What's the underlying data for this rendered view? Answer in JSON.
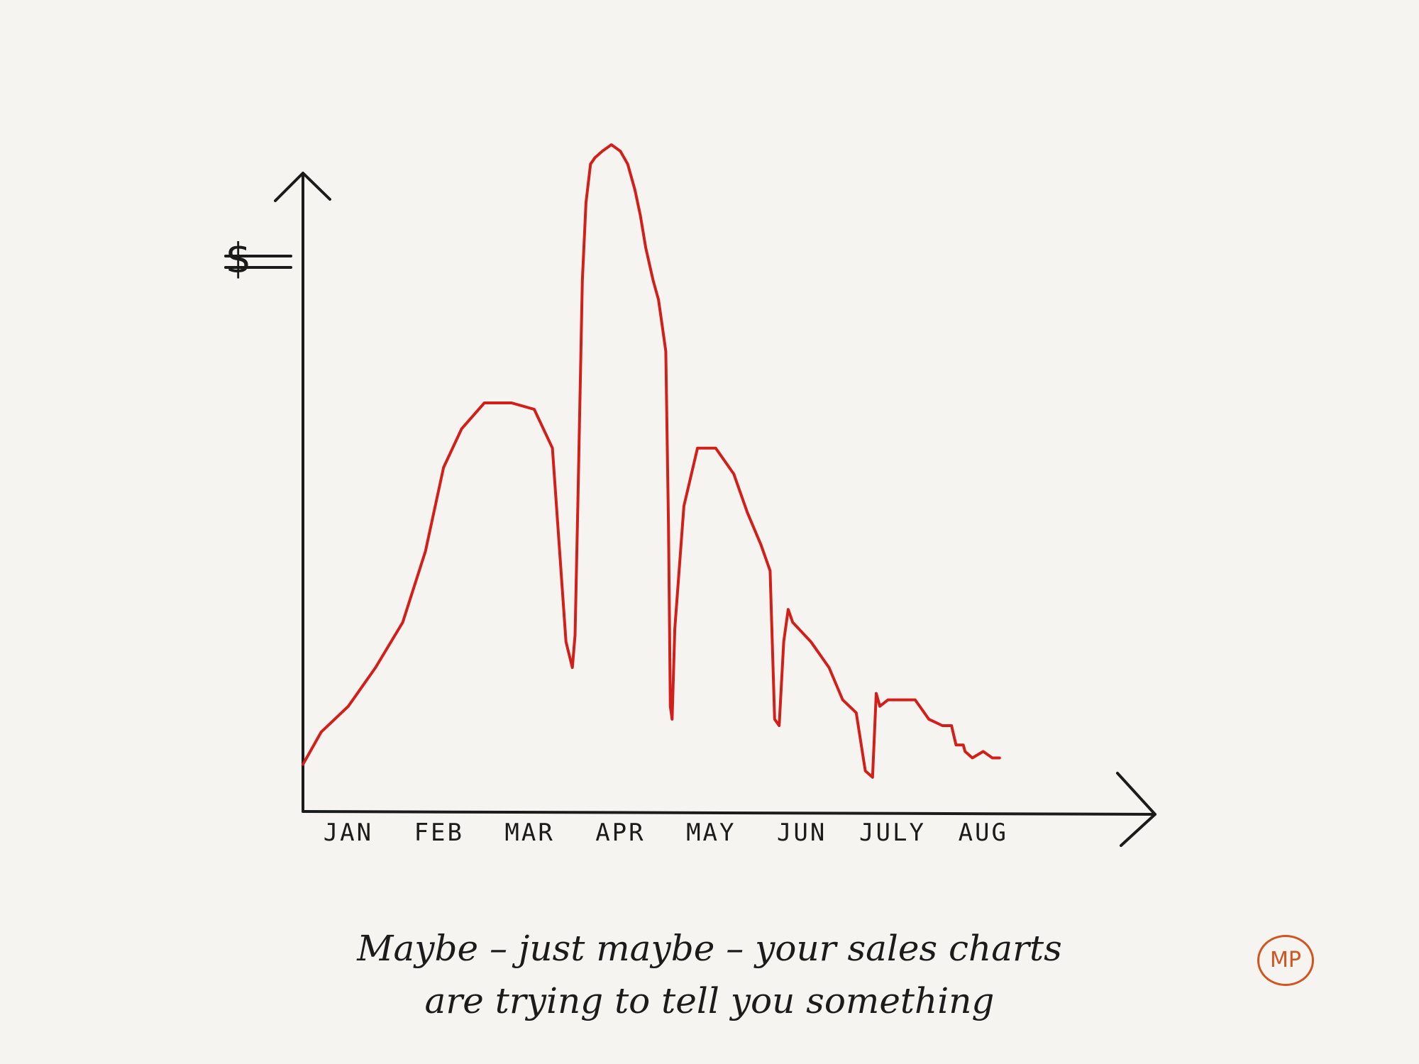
{
  "chart_data": {
    "type": "line",
    "title": "",
    "ylabel": "$",
    "xlabel": "",
    "categories": [
      "JAN",
      "FEB",
      "MAR",
      "APR",
      "MAY",
      "JUN",
      "JULY",
      "AUG"
    ],
    "x_range": [
      0,
      8.8
    ],
    "ylim": [
      0,
      100
    ],
    "grid": false,
    "legend": "none",
    "color": "#d21f1a",
    "series": [
      {
        "x": [
          0.0,
          0.2,
          0.5,
          0.8,
          1.1,
          1.35,
          1.55,
          1.75,
          2.0,
          2.3,
          2.55,
          2.75,
          2.9,
          2.97,
          3.0,
          3.03,
          3.08,
          3.12,
          3.17,
          3.22,
          3.3,
          3.4,
          3.5,
          3.58,
          3.66,
          3.72,
          3.78,
          3.86,
          3.92,
          3.96,
          4.0,
          4.03,
          4.05,
          4.07,
          4.1,
          4.2,
          4.35,
          4.55,
          4.75,
          4.9,
          5.05,
          5.15,
          5.2,
          5.25,
          5.3,
          5.35,
          5.4,
          5.6,
          5.8,
          5.95,
          6.1,
          6.2,
          6.28,
          6.32,
          6.36,
          6.45,
          6.6,
          6.75,
          6.9,
          7.05,
          7.15,
          7.2,
          7.28,
          7.3,
          7.38,
          7.5,
          7.6,
          7.68
        ],
        "y": [
          4,
          9,
          13,
          19,
          26,
          37,
          50,
          56,
          60,
          60,
          59,
          53,
          23,
          19,
          24,
          44,
          79,
          91,
          97,
          98,
          99,
          100,
          99,
          97,
          93,
          89,
          84,
          79,
          76,
          72,
          68,
          41,
          13,
          11,
          25,
          44,
          53,
          53,
          49,
          43,
          38,
          34,
          11,
          10,
          23,
          28,
          26,
          23,
          19,
          14,
          12,
          3,
          2,
          15,
          13,
          14,
          14,
          14,
          11,
          10,
          10,
          7,
          7,
          6,
          5,
          6,
          5,
          5
        ]
      }
    ]
  },
  "caption": {
    "line1": "Maybe – just maybe – your sales charts",
    "line2": "are trying to tell you something"
  },
  "logo": {
    "text": "MP",
    "color": "#d2541e"
  }
}
